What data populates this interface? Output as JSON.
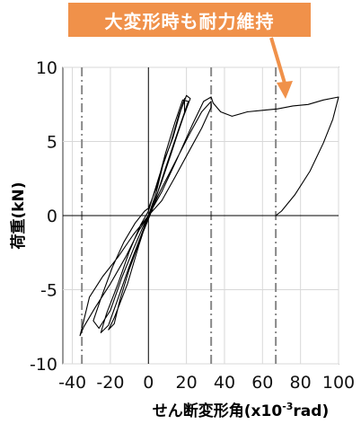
{
  "chart_data": {
    "type": "line",
    "title": "",
    "xlabel": "せん断変形角(x10⁻³rad)",
    "xlabel_parts": {
      "main": "せん断変形角(x10",
      "sup": "-3",
      "tail": "rad)"
    },
    "ylabel": "荷重(kN)",
    "xlim": [
      -45,
      100
    ],
    "ylim": [
      -10,
      10
    ],
    "x_ticks": [
      -40,
      -20,
      0,
      20,
      40,
      60,
      80,
      100
    ],
    "y_ticks": [
      10,
      5,
      0,
      -5,
      -10
    ],
    "grid": true,
    "reference_lines_x": [
      -35,
      33,
      67
    ],
    "annotation": {
      "text": "大変形時も耐力維持",
      "color": "#f0914a"
    },
    "series": [
      {
        "values": [
          [
            0,
            0
          ],
          [
            4,
            1.5
          ],
          [
            8,
            3.6
          ],
          [
            13,
            5.3
          ],
          [
            17,
            7.1
          ],
          [
            20,
            8.1
          ],
          [
            22,
            7.9
          ],
          [
            17,
            6.2
          ],
          [
            12,
            4.2
          ],
          [
            7,
            2.3
          ],
          [
            3,
            0.9
          ],
          [
            0,
            0
          ],
          [
            -3,
            -0.8
          ],
          [
            -8,
            -2.3
          ],
          [
            -14,
            -4.2
          ],
          [
            -20,
            -6.4
          ],
          [
            -26,
            -7.6
          ],
          [
            -29,
            -7.1
          ],
          [
            -25,
            -5.6
          ],
          [
            -19,
            -3.5
          ],
          [
            -13,
            -1.8
          ],
          [
            -7,
            -0.5
          ],
          [
            -2,
            0.3
          ],
          [
            0,
            0.5
          ],
          [
            4,
            1.8
          ],
          [
            9,
            4.2
          ],
          [
            14,
            6.3
          ],
          [
            18,
            7.8
          ],
          [
            21,
            7.7
          ],
          [
            18,
            6.6
          ],
          [
            14,
            5.1
          ],
          [
            9,
            3.2
          ],
          [
            4,
            1.2
          ],
          [
            0,
            0
          ],
          [
            -4,
            -1.4
          ],
          [
            -10,
            -3.4
          ],
          [
            -16,
            -5.6
          ],
          [
            -21,
            -7.4
          ],
          [
            -25,
            -7.9
          ],
          [
            -22,
            -6.6
          ],
          [
            -16,
            -4.6
          ],
          [
            -10,
            -2.4
          ],
          [
            -4,
            -0.6
          ],
          [
            0,
            0.3
          ],
          [
            6,
            2.8
          ],
          [
            12,
            5.0
          ],
          [
            16,
            6.8
          ],
          [
            19,
            7.9
          ],
          [
            19,
            6.9
          ],
          [
            14,
            5.0
          ],
          [
            8,
            2.8
          ],
          [
            2,
            0.4
          ],
          [
            -4,
            -1.5
          ],
          [
            -10,
            -3.6
          ],
          [
            -15,
            -5.7
          ],
          [
            -18,
            -7.3
          ],
          [
            -21,
            -7.7
          ],
          [
            -18,
            -6.9
          ],
          [
            -11,
            -4.6
          ],
          [
            -5,
            -2.0
          ],
          [
            0,
            0
          ],
          [
            6,
            1.6
          ],
          [
            14,
            3.6
          ],
          [
            22,
            5.6
          ],
          [
            28,
            7.0
          ],
          [
            33,
            7.7
          ],
          [
            33,
            7.3
          ],
          [
            28,
            5.9
          ],
          [
            22,
            4.5
          ],
          [
            14,
            2.6
          ],
          [
            7,
            1.0
          ],
          [
            0,
            0
          ],
          [
            -8,
            -1.3
          ],
          [
            -16,
            -2.8
          ],
          [
            -24,
            -4.1
          ],
          [
            -31,
            -5.5
          ],
          [
            -35,
            -7.6
          ],
          [
            -36,
            -8.1
          ],
          [
            -34,
            -7.5
          ],
          [
            -28,
            -6.2
          ],
          [
            -20,
            -4.6
          ],
          [
            -12,
            -2.8
          ],
          [
            -5,
            -1.0
          ],
          [
            0,
            0
          ],
          [
            7,
            1.6
          ],
          [
            15,
            3.8
          ],
          [
            23,
            6.1
          ],
          [
            29,
            7.7
          ],
          [
            33,
            8.0
          ],
          [
            34,
            7.6
          ],
          [
            38,
            7.0
          ],
          [
            44,
            6.7
          ],
          [
            52,
            7.0
          ],
          [
            60,
            7.1
          ],
          [
            68,
            7.2
          ],
          [
            76,
            7.4
          ],
          [
            84,
            7.5
          ],
          [
            92,
            7.8
          ],
          [
            100,
            8.0
          ],
          [
            97,
            6.5
          ],
          [
            92,
            4.9
          ],
          [
            85,
            3.0
          ],
          [
            77,
            1.4
          ],
          [
            70,
            0.3
          ],
          [
            67,
            0
          ]
        ]
      }
    ]
  }
}
